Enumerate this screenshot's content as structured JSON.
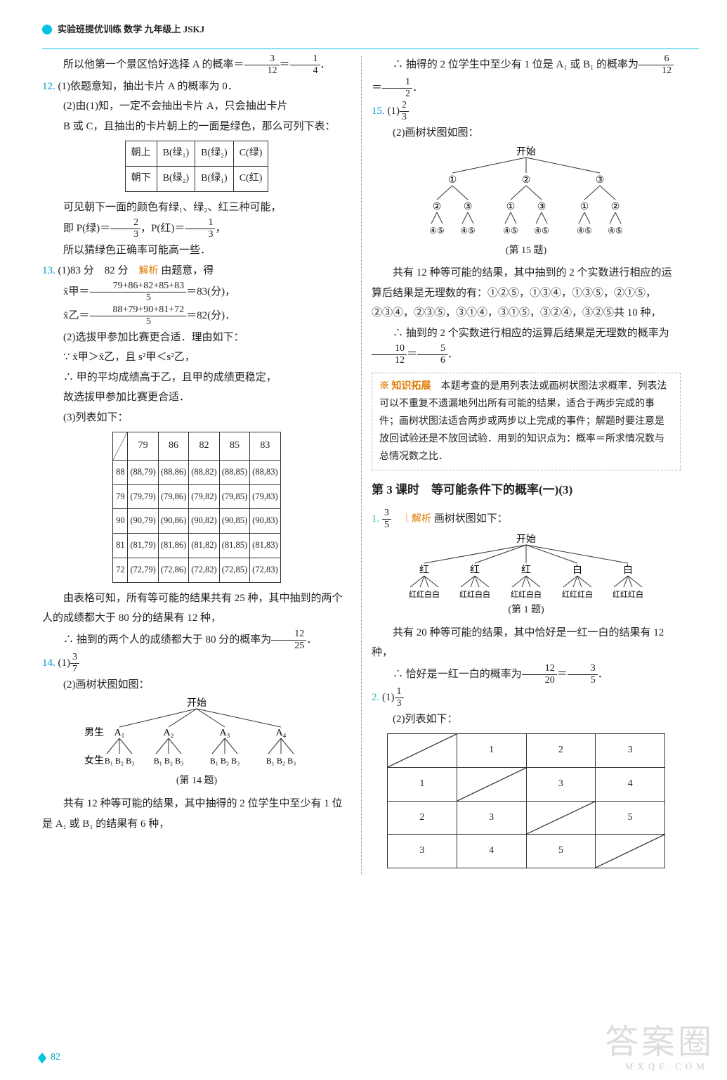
{
  "header": "实验班提优训练 数学 九年级上 JSKJ",
  "page_number": "82",
  "watermark_main": "答案圈",
  "watermark_sub": "MXQE.COM",
  "left": {
    "intro_line": "所以他第一个景区恰好选择 A 的概率＝3/12＝1/4．",
    "q12_num": "12.",
    "q12_1": "(1)依题意知，抽出卡片 A 的概率为 0．",
    "q12_2a": "(2)由(1)知，一定不会抽出卡片 A，只会抽出卡片",
    "q12_2b": "B 或 C，且抽出的卡片朝上的一面是绿色，那么可列下表：",
    "table12": {
      "rows": [
        [
          "朝上",
          "B(绿₁)",
          "B(绿₂)",
          "C(绿)"
        ],
        [
          "朝下",
          "B(绿₂)",
          "B(绿₁)",
          "C(红)"
        ]
      ]
    },
    "q12_after1": "可见朝下一面的颜色有绿₁、绿₂、红三种可能，",
    "q12_after2": "即 P(绿)＝2/3，P(红)＝1/3，",
    "q12_after3": "所以猜绿色正确率可能高一些．",
    "q13_num": "13.",
    "q13_1a": "(1)83 分　82 分　",
    "analysis_label": "解析",
    "q13_1b": " 由题意，得",
    "q13_eq1_items": "79+86+82+85+83",
    "q13_eq1_div": "5",
    "q13_eq1_tail": "＝83(分)，",
    "q13_eq1_head": "x̄甲＝",
    "q13_eq2_head": "x̄乙＝",
    "q13_eq2_items": "88+79+90+81+72",
    "q13_eq2_div": "5",
    "q13_eq2_tail": "＝82(分)．",
    "q13_2a": "(2)选拔甲参加比赛更合适．理由如下：",
    "q13_2b": "∵ x̄甲＞x̄乙，且 s²甲＜s²乙，",
    "q13_2c": "∴ 甲的平均成绩高于乙，且甲的成绩更稳定，",
    "q13_2d": "故选拔甲参加比赛更合适．",
    "q13_3": "(3)列表如下：",
    "table13": {
      "header": [
        "",
        "79",
        "86",
        "82",
        "85",
        "83"
      ],
      "rows": [
        [
          "88",
          "(88,79)",
          "(88,86)",
          "(88,82)",
          "(88,85)",
          "(88,83)"
        ],
        [
          "79",
          "(79,79)",
          "(79,86)",
          "(79,82)",
          "(79,85)",
          "(79,83)"
        ],
        [
          "90",
          "(90,79)",
          "(90,86)",
          "(90,82)",
          "(90,85)",
          "(90,83)"
        ],
        [
          "81",
          "(81,79)",
          "(81,86)",
          "(81,82)",
          "(81,85)",
          "(81,83)"
        ],
        [
          "72",
          "(72,79)",
          "(72,86)",
          "(72,82)",
          "(72,85)",
          "(72,83)"
        ]
      ]
    },
    "q13_after1": "由表格可知，所有等可能的结果共有 25 种，其中抽到的两个人的成绩都大于 80 分的结果有 12 种，",
    "q13_after2": "∴ 抽到的两个人的成绩都大于 80 分的概率为 12/25．",
    "q14_num": "14.",
    "q14_1": "(1)3/7",
    "q14_2": "(2)画树状图如图：",
    "tree14": {
      "root": "开始",
      "row1_label": "男生",
      "row2_label": "女生",
      "level1": [
        "A₁",
        "A₂",
        "A₃",
        "A₄"
      ],
      "level2": "B₁ B₂ B₃",
      "caption": "(第 14 题)"
    },
    "q14_after1": "共有 12 种等可能的结果，其中抽得的 2 位学生中至少有 1 位是 A₁ 或 B₁ 的结果有 6 种，"
  },
  "right": {
    "cont_a": "∴ 抽得的 2 位学生中至少有 1 位是 A₁ 或 B₁ 的概率为 6/12＝1/2．",
    "q15_num": "15.",
    "q15_1": "(1)2/3",
    "q15_2": "(2)画树状图如图：",
    "tree15": {
      "root": "开始",
      "level1": [
        "①",
        "②",
        "③"
      ],
      "level2": [
        [
          "②",
          "③"
        ],
        [
          "①",
          "③"
        ],
        [
          "①",
          "②"
        ]
      ],
      "level3_pair": "④⑤",
      "caption": "(第 15 题)"
    },
    "q15_after1": "共有 12 种等可能的结果，其中抽到的 2 个实数进行相应的运算后结果是无理数的有：①②⑤，①③④，①③⑤，②①⑤，②③④，②③⑤，③①④，③①⑤，③②④，③②⑤共 10 种，",
    "q15_after2": "∴ 抽到的 2 个实数进行相应的运算后结果是无理数的概率为 10/12＝5/6．",
    "infobox": {
      "tag": "※ 知识拓展",
      "text": "　本题考查的是用列表法或画树状图法求概率．列表法可以不重复不遗漏地列出所有可能的结果，适合于两步完成的事件；画树状图法适合两步或两步以上完成的事件；解题时要注意是放回试验还是不放回试验．用到的知识点为：概率＝所求情况数与总情况数之比．"
    },
    "section_title": "第 3 课时　等可能条件下的概率(一)(3)",
    "s1_num": "1.",
    "s1_ans": "3/5",
    "s1_analysis": " 画树状图如下：",
    "tree1": {
      "root": "开始",
      "level1": [
        "红",
        "红",
        "红",
        "白",
        "白"
      ],
      "level2": [
        "红红白白",
        "红红白白",
        "红红白白",
        "红红红白",
        "红红红白"
      ],
      "caption": "(第 1 题)"
    },
    "s1_after1": "共有 20 种等可能的结果，其中恰好是一红一白的结果有 12 种，",
    "s1_after2": "∴ 恰好是一红一白的概率为 12/20＝3/5．",
    "s2_num": "2.",
    "s2_1": "(1)1/3",
    "s2_2": "(2)列表如下：",
    "table2": {
      "header": [
        "",
        "1",
        "2",
        "3"
      ],
      "rows": [
        [
          "1",
          "",
          "3",
          "4"
        ],
        [
          "2",
          "3",
          "",
          "5"
        ],
        [
          "3",
          "4",
          "5",
          ""
        ]
      ],
      "diag": [
        [
          1,
          1
        ],
        [
          2,
          2
        ],
        [
          3,
          3
        ]
      ]
    }
  }
}
